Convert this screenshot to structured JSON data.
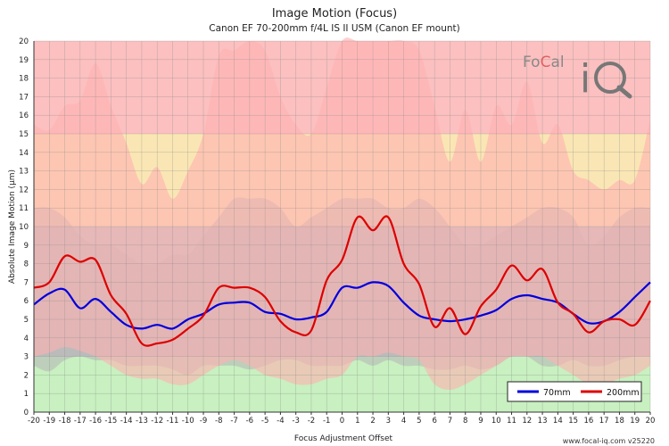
{
  "chart_data": {
    "type": "line",
    "title": "Image Motion (Focus)",
    "subtitle": "Canon EF 70-200mm f/4L IS II USM (Canon EF mount)",
    "xlabel": "Focus Adjustment Offset",
    "ylabel": "Absolute Image Motion (µm)",
    "xlim": [
      -20,
      20
    ],
    "ylim": [
      0,
      20
    ],
    "x_ticks": [
      -20,
      -19,
      -18,
      -17,
      -16,
      -15,
      -14,
      -13,
      -12,
      -11,
      -10,
      -9,
      -8,
      -7,
      -6,
      -5,
      -4,
      -3,
      -2,
      -1,
      0,
      1,
      2,
      3,
      4,
      5,
      6,
      7,
      8,
      9,
      10,
      11,
      12,
      13,
      14,
      15,
      16,
      17,
      18,
      19,
      20
    ],
    "y_ticks": [
      0,
      1,
      2,
      3,
      4,
      5,
      6,
      7,
      8,
      9,
      10,
      11,
      12,
      13,
      14,
      15,
      16,
      17,
      18,
      19,
      20
    ],
    "grid": true,
    "legend_position": "bottom-right",
    "bands": [
      {
        "from": 0,
        "to": 3,
        "color": "#c8f0c0"
      },
      {
        "from": 3,
        "to": 10,
        "color": "#c4c4c4"
      },
      {
        "from": 10,
        "to": 15,
        "color": "#fae6b4"
      },
      {
        "from": 15,
        "to": 20,
        "color": "#fcc0c0"
      }
    ],
    "envelopes": [
      {
        "color": "#b4b4b4",
        "opacity": 0.55,
        "x": [
          -20,
          -19,
          -18,
          -17,
          -16,
          -15,
          -14,
          -13,
          -12,
          -11,
          -10,
          -9,
          -8,
          -7,
          -6,
          -5,
          -4,
          -3,
          -2,
          -1,
          0,
          1,
          2,
          3,
          4,
          5,
          6,
          7,
          8,
          9,
          10,
          11,
          12,
          13,
          14,
          15,
          16,
          17,
          18,
          19,
          20
        ],
        "upper": [
          11.0,
          11.0,
          10.5,
          9.5,
          9.0,
          9.0,
          8.5,
          8.0,
          8.0,
          8.5,
          8.5,
          9.5,
          10.5,
          11.5,
          11.5,
          11.5,
          11.0,
          10.0,
          10.5,
          11.0,
          11.5,
          11.5,
          11.5,
          11.0,
          11.0,
          11.5,
          11.0,
          10.0,
          9.0,
          9.0,
          9.5,
          10.0,
          10.5,
          11.0,
          11.0,
          10.5,
          9.0,
          9.5,
          10.5,
          11.0,
          11.0
        ],
        "lower": [
          2.5,
          2.2,
          2.8,
          3.0,
          2.8,
          2.8,
          2.5,
          2.5,
          2.5,
          2.3,
          2.0,
          2.5,
          2.5,
          2.5,
          2.3,
          2.5,
          2.8,
          2.8,
          2.5,
          2.5,
          2.5,
          2.8,
          2.5,
          2.8,
          2.5,
          2.5,
          2.3,
          2.3,
          2.5,
          2.3,
          2.5,
          3.0,
          3.0,
          2.5,
          2.5,
          2.8,
          2.5,
          2.5,
          2.8,
          3.0,
          3.0
        ]
      },
      {
        "color": "#ffb0b0",
        "opacity": 0.6,
        "x": [
          -20,
          -19,
          -18,
          -17,
          -16,
          -15,
          -14,
          -13,
          -12,
          -11,
          -10,
          -9,
          -8,
          -7,
          -6,
          -5,
          -4,
          -3,
          -2,
          -1,
          0,
          1,
          2,
          3,
          4,
          5,
          6,
          7,
          8,
          9,
          10,
          11,
          12,
          13,
          14,
          15,
          16,
          17,
          18,
          19,
          20
        ],
        "upper": [
          15.5,
          15.2,
          16.5,
          16.8,
          18.8,
          16.5,
          14.5,
          12.3,
          13.2,
          11.5,
          13.0,
          15.0,
          19.2,
          19.5,
          20.0,
          19.5,
          17.0,
          15.5,
          15.0,
          17.5,
          20.0,
          20.0,
          20.0,
          20.0,
          20.0,
          19.5,
          16.5,
          13.5,
          16.3,
          13.5,
          16.5,
          15.5,
          17.8,
          14.5,
          15.5,
          13.0,
          12.5,
          12.0,
          12.5,
          12.5,
          15.8
        ],
        "lower": [
          3.0,
          3.2,
          3.5,
          3.3,
          3.0,
          2.5,
          2.0,
          1.8,
          1.8,
          1.5,
          1.5,
          2.0,
          2.5,
          2.8,
          2.5,
          2.0,
          1.8,
          1.5,
          1.5,
          1.8,
          2.0,
          3.0,
          3.0,
          3.2,
          3.0,
          2.8,
          1.5,
          1.2,
          1.5,
          2.0,
          2.5,
          3.0,
          3.0,
          3.0,
          2.5,
          2.0,
          1.5,
          1.5,
          1.8,
          2.0,
          2.5
        ]
      }
    ],
    "series": [
      {
        "name": "70mm",
        "color": "#0000dd",
        "x": [
          -20,
          -19,
          -18,
          -17,
          -16,
          -15,
          -14,
          -13,
          -12,
          -11,
          -10,
          -9,
          -8,
          -7,
          -6,
          -5,
          -4,
          -3,
          -2,
          -1,
          0,
          1,
          2,
          3,
          4,
          5,
          6,
          7,
          8,
          9,
          10,
          11,
          12,
          13,
          14,
          15,
          16,
          17,
          18,
          19,
          20
        ],
        "y": [
          5.8,
          6.4,
          6.6,
          5.6,
          6.1,
          5.4,
          4.7,
          4.5,
          4.7,
          4.5,
          5.0,
          5.3,
          5.8,
          5.9,
          5.9,
          5.4,
          5.3,
          5.0,
          5.1,
          5.4,
          6.7,
          6.7,
          7.0,
          6.8,
          5.9,
          5.2,
          5.0,
          4.9,
          5.0,
          5.2,
          5.5,
          6.1,
          6.3,
          6.1,
          5.9,
          5.3,
          4.8,
          4.9,
          5.4,
          6.2,
          7.0
        ]
      },
      {
        "name": "200mm",
        "color": "#dd0000",
        "x": [
          -20,
          -19,
          -18,
          -17,
          -16,
          -15,
          -14,
          -13,
          -12,
          -11,
          -10,
          -9,
          -8,
          -7,
          -6,
          -5,
          -4,
          -3,
          -2,
          -1,
          0,
          1,
          2,
          3,
          4,
          5,
          6,
          7,
          8,
          9,
          10,
          11,
          12,
          13,
          14,
          15,
          16,
          17,
          18,
          19,
          20
        ],
        "y": [
          6.7,
          7.0,
          8.4,
          8.1,
          8.2,
          6.3,
          5.3,
          3.7,
          3.7,
          3.9,
          4.5,
          5.2,
          6.7,
          6.7,
          6.7,
          6.2,
          4.9,
          4.3,
          4.4,
          7.1,
          8.2,
          10.5,
          9.8,
          10.5,
          8.0,
          6.9,
          4.6,
          5.6,
          4.2,
          5.7,
          6.6,
          7.9,
          7.1,
          7.7,
          5.9,
          5.3,
          4.3,
          4.9,
          5.0,
          4.7,
          6.0
        ]
      }
    ]
  },
  "footer": "www.focal-iq.com  v25220",
  "logo": {
    "text_left": "Fo",
    "text_mid": "C",
    "text_right": "al",
    "letters": "iQ"
  }
}
